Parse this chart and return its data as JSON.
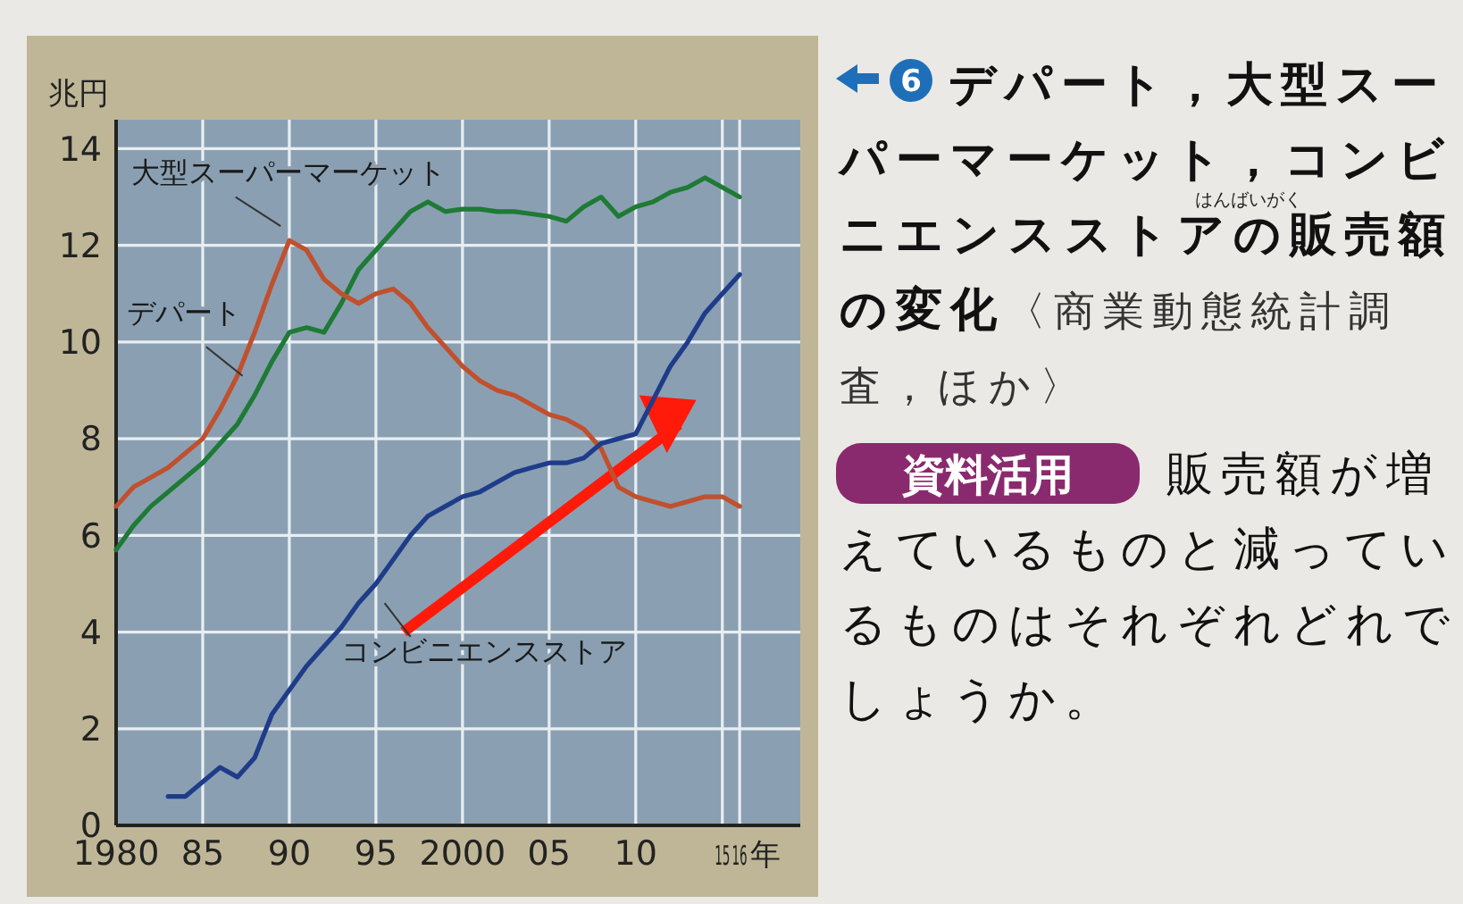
{
  "chart_data": {
    "type": "line",
    "title": "デパート，大型スーパーマーケット，コンビニエンスストアの販売額の変化",
    "subtitle": "〈商業動態統計調査，ほか〉",
    "ylabel": "兆円",
    "xlabel": "年",
    "x": [
      1980,
      1981,
      1982,
      1983,
      1984,
      1985,
      1986,
      1987,
      1988,
      1989,
      1990,
      1991,
      1992,
      1993,
      1994,
      1995,
      1996,
      1997,
      1998,
      1999,
      2000,
      2001,
      2002,
      2003,
      2004,
      2005,
      2006,
      2007,
      2008,
      2009,
      2010,
      2011,
      2012,
      2013,
      2014,
      2015,
      2016
    ],
    "series": [
      {
        "name": "大型スーパーマーケット",
        "color": "#1e7a35",
        "values": [
          5.7,
          6.2,
          6.6,
          6.9,
          7.2,
          7.5,
          7.9,
          8.3,
          8.9,
          9.6,
          10.2,
          10.3,
          10.2,
          10.8,
          11.5,
          11.9,
          12.3,
          12.7,
          12.9,
          12.7,
          12.75,
          12.75,
          12.7,
          12.7,
          12.65,
          12.6,
          12.5,
          12.8,
          13.0,
          12.6,
          12.8,
          12.9,
          13.1,
          13.2,
          13.4,
          13.2,
          13.0
        ]
      },
      {
        "name": "デパート",
        "color": "#c0502e",
        "values": [
          6.6,
          7.0,
          7.2,
          7.4,
          7.7,
          8.0,
          8.6,
          9.3,
          10.2,
          11.2,
          12.1,
          11.9,
          11.3,
          11.0,
          10.8,
          11.0,
          11.1,
          10.8,
          10.3,
          9.9,
          9.5,
          9.2,
          9.0,
          8.9,
          8.7,
          8.5,
          8.4,
          8.2,
          7.8,
          7.0,
          6.8,
          6.7,
          6.6,
          6.7,
          6.8,
          6.8,
          6.6
        ]
      },
      {
        "name": "コンビニエンスストア",
        "color": "#1f3c8a",
        "values": [
          null,
          null,
          null,
          0.6,
          0.6,
          0.9,
          1.2,
          1.0,
          1.4,
          2.3,
          2.8,
          3.3,
          3.7,
          4.1,
          4.6,
          5.0,
          5.5,
          6.0,
          6.4,
          6.6,
          6.8,
          6.9,
          7.1,
          7.3,
          7.4,
          7.5,
          7.5,
          7.6,
          7.9,
          8.0,
          8.1,
          8.8,
          9.5,
          10.0,
          10.6,
          11.0,
          11.4
        ]
      }
    ],
    "xlim": [
      1980,
      2019.5
    ],
    "xticks": [
      1980,
      {
        "value": 1985,
        "label": "85"
      },
      {
        "value": 1990,
        "label": "90"
      },
      {
        "value": 1995,
        "label": "95"
      },
      2000,
      {
        "value": 2005,
        "label": "05"
      },
      {
        "value": 2010,
        "label": "10"
      },
      {
        "value": 2015,
        "label": "15"
      },
      {
        "value": 2016,
        "label": "16"
      }
    ],
    "ylim": [
      0,
      14.6
    ],
    "yticks": [
      0,
      2,
      4,
      6,
      8,
      10,
      12,
      14
    ],
    "grid": true,
    "annotations": [
      "6",
      "はんばいがく",
      "資料活用",
      "販売額が増えているものと減っているものはそれぞれどれでしょうか。"
    ]
  }
}
